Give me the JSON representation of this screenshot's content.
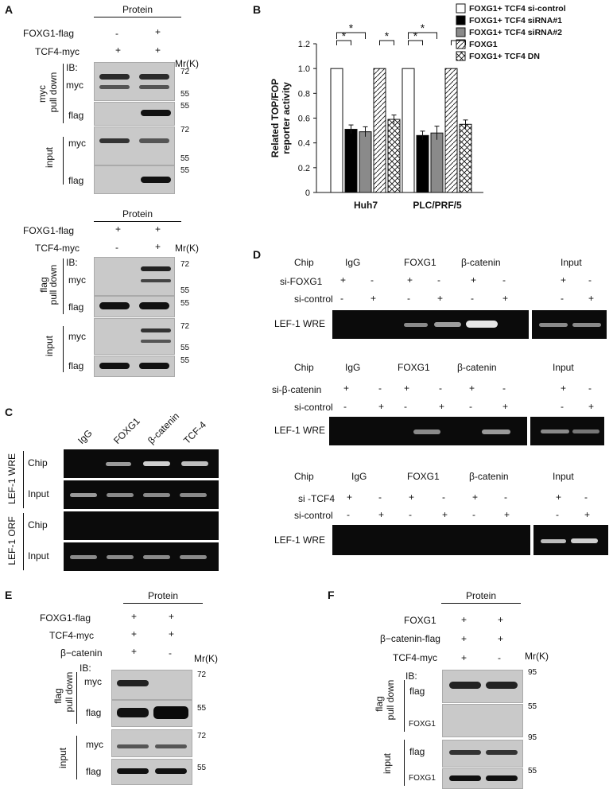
{
  "panels": {
    "A": "A",
    "B": "B",
    "C": "C",
    "D": "D",
    "E": "E",
    "F": "F"
  },
  "common": {
    "protein": "Protein",
    "mr": "Mr(K)",
    "ib": "IB:",
    "plus": "+",
    "minus": "-",
    "myc": "myc",
    "flag": "flag",
    "input": "input",
    "pulldown": "pull down",
    "m72": "72",
    "m55": "55",
    "m95": "95"
  },
  "panelA": {
    "row1": "FOXG1-flag",
    "row2": "TCF4-myc",
    "top_group": "myc",
    "bottom_group": "flag"
  },
  "panelE": {
    "row1": "FOXG1-flag",
    "row2": "TCF4-myc",
    "row3": "β−catenin",
    "group": "flag"
  },
  "panelF": {
    "row1": "FOXG1",
    "row2": "β−catenin-flag",
    "row3": "TCF4-myc",
    "group": "flag",
    "foxg1": "FOXG1"
  },
  "panelC": {
    "lanes": [
      "IgG",
      "FOXG1",
      "β-catenin",
      "TCF-4"
    ],
    "wre": "LEF-1 WRE",
    "orf": "LEF-1 ORF",
    "chip": "Chip",
    "input": "Input"
  },
  "panelD": {
    "chip": "Chip",
    "igg": "IgG",
    "foxg1": "FOXG1",
    "bcat": "β-catenin",
    "input": "Input",
    "sicontrol": "si-control",
    "wre": "LEF-1 WRE",
    "si1": "si-FOXG1",
    "si2": "si-β-catenin",
    "si3": "si -TCF4"
  },
  "chart_data": {
    "type": "bar",
    "ylabel": "Related TOP/FOP reporter activity",
    "ylim": [
      0,
      1.2
    ],
    "yticks": [
      "0",
      "0.2",
      "0.4",
      "0.6",
      "0.8",
      "1.0",
      "1.2"
    ],
    "categories": [
      "Huh7",
      "PLC/PRF/5"
    ],
    "series": [
      {
        "name": "FOXG1+ TCF4 si-control",
        "values": [
          1.0,
          1.0
        ],
        "errors": [
          0,
          0
        ],
        "fill": "#ffffff",
        "pattern": "none"
      },
      {
        "name": "FOXG1+ TCF4 siRNA#1",
        "values": [
          0.51,
          0.46
        ],
        "errors": [
          0.035,
          0.035
        ],
        "fill": "#000000",
        "pattern": "none"
      },
      {
        "name": "FOXG1+ TCF4 siRNA#2",
        "values": [
          0.49,
          0.48
        ],
        "errors": [
          0.04,
          0.055
        ],
        "fill": "#8a8a8a",
        "pattern": "none"
      },
      {
        "name": "FOXG1",
        "values": [
          1.0,
          1.0
        ],
        "errors": [
          0,
          0
        ],
        "fill": "#ffffff",
        "pattern": "hatch"
      },
      {
        "name": "FOXG1+ TCF4 DN",
        "values": [
          0.59,
          0.55
        ],
        "errors": [
          0.035,
          0.035
        ],
        "fill": "#ffffff",
        "pattern": "cross"
      }
    ],
    "significance": "*"
  }
}
